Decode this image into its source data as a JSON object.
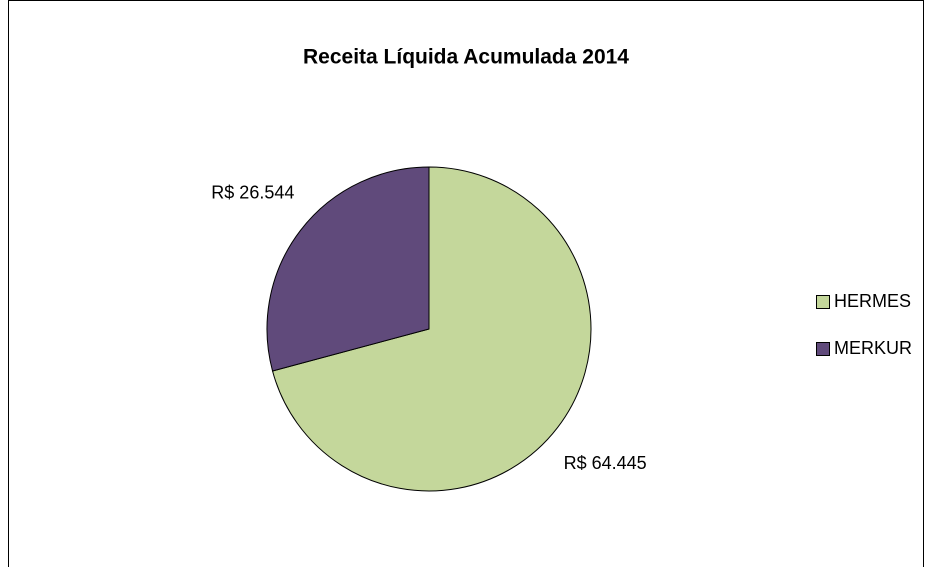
{
  "chart_data": {
    "type": "pie",
    "title": "Receita Líquida Acumulada 2014",
    "categories": [
      "HERMES",
      "MERKUR"
    ],
    "values": [
      64445,
      26544
    ],
    "value_labels": [
      "R$ 64.445",
      "R$ 26.544"
    ],
    "colors": [
      "#c4d79b",
      "#604a7b"
    ],
    "legend": "right"
  }
}
